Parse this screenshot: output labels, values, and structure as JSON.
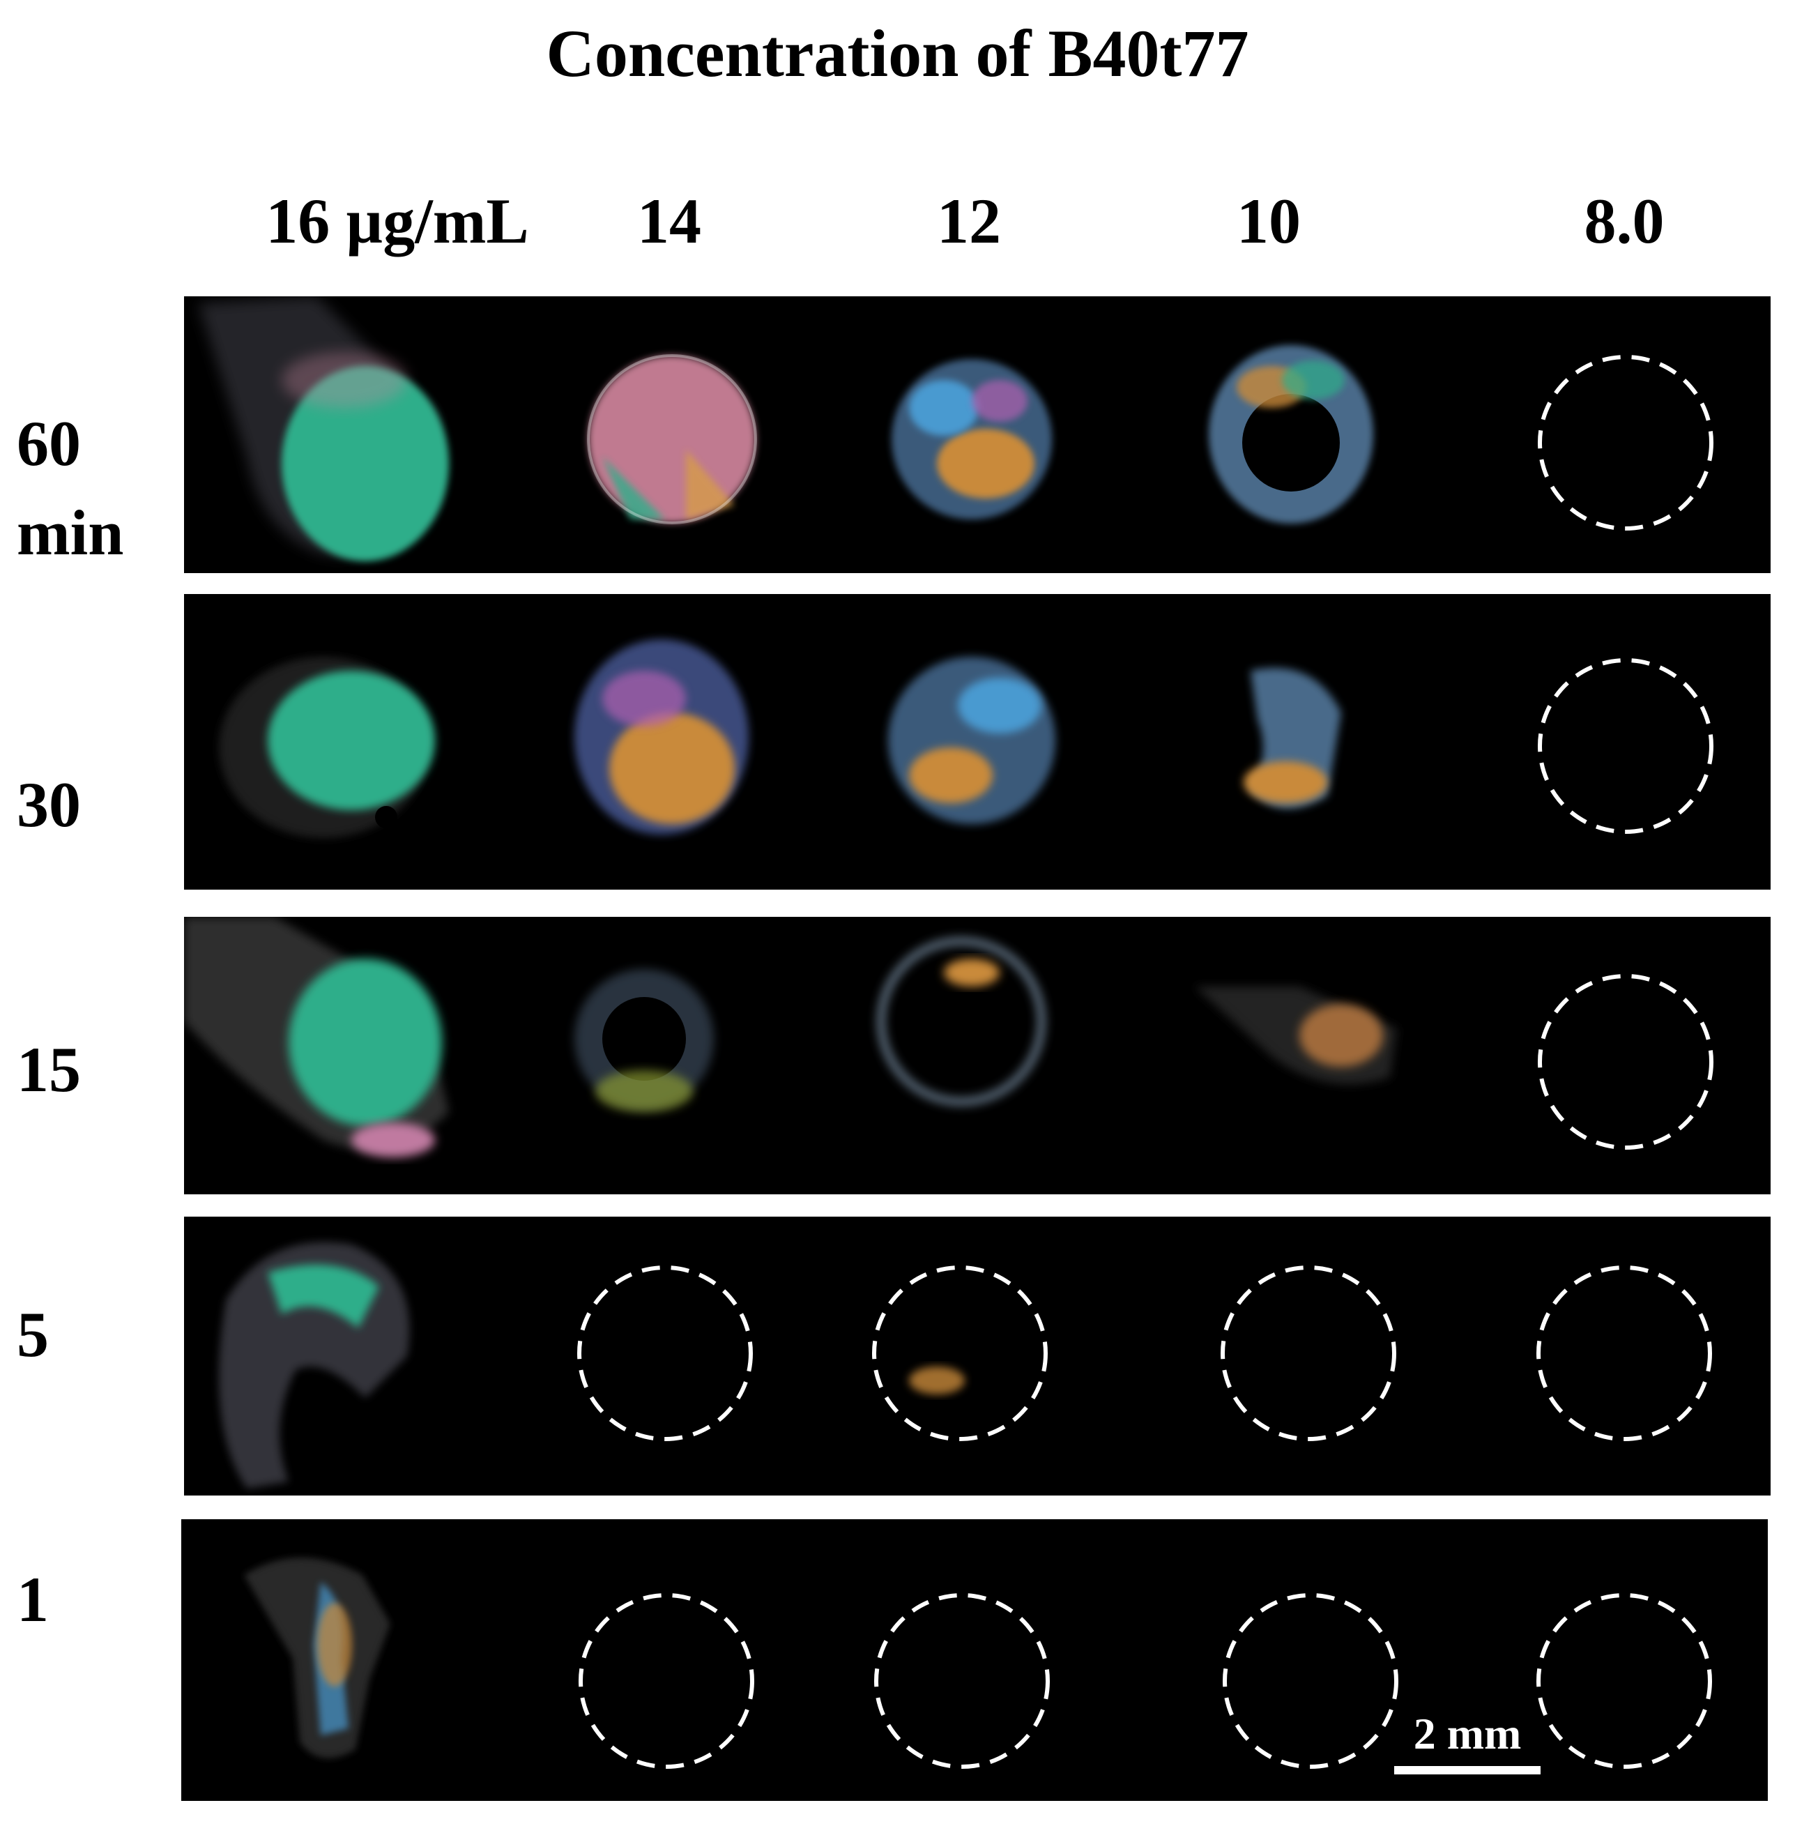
{
  "title": "Concentration of B40t77",
  "columns": [
    "16 µg/mL",
    "14",
    "12",
    "10",
    "8.0"
  ],
  "rows": [
    {
      "label_line1": "60",
      "label_line2": "min"
    },
    {
      "label_line1": "30",
      "label_line2": ""
    },
    {
      "label_line1": "15",
      "label_line2": ""
    },
    {
      "label_line1": "5",
      "label_line2": ""
    },
    {
      "label_line1": "1",
      "label_line2": ""
    }
  ],
  "scale_bar": {
    "label": "2 mm"
  },
  "colors": {
    "background": "#000000",
    "marker": "#ffffff",
    "green": "#2fae8a",
    "pink": "#d98aa0",
    "orange": "#c98a3a",
    "blue": "#4a9ad0"
  }
}
